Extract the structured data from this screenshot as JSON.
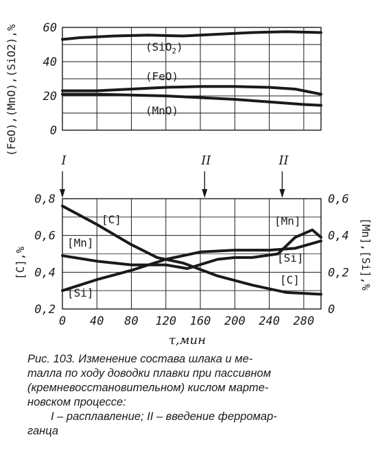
{
  "chart_data": [
    {
      "type": "line",
      "ylabel": "(FeO),(MnO),(SiO2),%",
      "ylim": [
        0,
        60
      ],
      "yticks": [
        "0",
        "20",
        "40",
        "60"
      ],
      "xlim": [
        0,
        300
      ],
      "grid": true,
      "series": [
        {
          "name": "(SiO2)",
          "x": [
            0,
            20,
            60,
            100,
            140,
            180,
            220,
            260,
            300
          ],
          "y": [
            53,
            54,
            55,
            55.5,
            55,
            56,
            57,
            57.5,
            57
          ]
        },
        {
          "name": "(FeO)",
          "x": [
            0,
            40,
            80,
            120,
            160,
            200,
            240,
            270,
            300
          ],
          "y": [
            23,
            23,
            24,
            25,
            25.5,
            25.5,
            25,
            24,
            21
          ]
        },
        {
          "name": "(MnO)",
          "x": [
            0,
            40,
            80,
            120,
            160,
            200,
            240,
            280,
            300
          ],
          "y": [
            21,
            21,
            20.5,
            20,
            19,
            18,
            16.5,
            15,
            14.5
          ]
        }
      ]
    },
    {
      "type": "line",
      "xlabel": "τ,мин",
      "xlim": [
        0,
        300
      ],
      "xticks": [
        "0",
        "40",
        "80",
        "120",
        "160",
        "200",
        "240",
        "280"
      ],
      "ylabel_left": "[C],%",
      "ylim_left": [
        0.2,
        0.8
      ],
      "yticks_left": [
        "0,2",
        "0,4",
        "0,6",
        "0,8"
      ],
      "ylabel_right": "[Mn],[Si],%",
      "ylim_right": [
        0,
        0.6
      ],
      "yticks_right": [
        "0",
        "0,2",
        "0,4",
        "0,6"
      ],
      "grid": true,
      "series": [
        {
          "name": "[C]",
          "axis": "left",
          "x": [
            0,
            40,
            80,
            110,
            140,
            180,
            220,
            260,
            300
          ],
          "y": [
            0.76,
            0.66,
            0.55,
            0.48,
            0.45,
            0.38,
            0.33,
            0.29,
            0.28
          ]
        },
        {
          "name": "[Mn]",
          "axis": "right",
          "x": [
            0,
            40,
            80,
            120,
            145,
            180,
            200,
            220,
            250,
            270,
            290,
            300
          ],
          "y": [
            0.29,
            0.26,
            0.24,
            0.24,
            0.22,
            0.27,
            0.28,
            0.28,
            0.3,
            0.39,
            0.43,
            0.39
          ]
        },
        {
          "name": "[Si]",
          "axis": "right",
          "x": [
            0,
            40,
            80,
            120,
            160,
            200,
            240,
            270,
            300
          ],
          "y": [
            0.1,
            0.16,
            0.21,
            0.27,
            0.31,
            0.32,
            0.32,
            0.33,
            0.37
          ]
        }
      ],
      "markers": [
        {
          "label": "I",
          "x": 0
        },
        {
          "label": "II",
          "x": 165
        },
        {
          "label": "II",
          "x": 255
        }
      ]
    }
  ],
  "caption": {
    "line1": "Рис. 103. Изменение состава шлака и ме-",
    "line2": "талла по ходу доводки плавки при пассивном",
    "line3": "(кремневосстановительном) кислом марте-",
    "line4": "новском процессе:",
    "line5": "I – расплавление; II – введение ферромар-",
    "line6": "ганца"
  },
  "colors": {
    "ink": "#1a1a1a",
    "paper": "#ffffff"
  }
}
